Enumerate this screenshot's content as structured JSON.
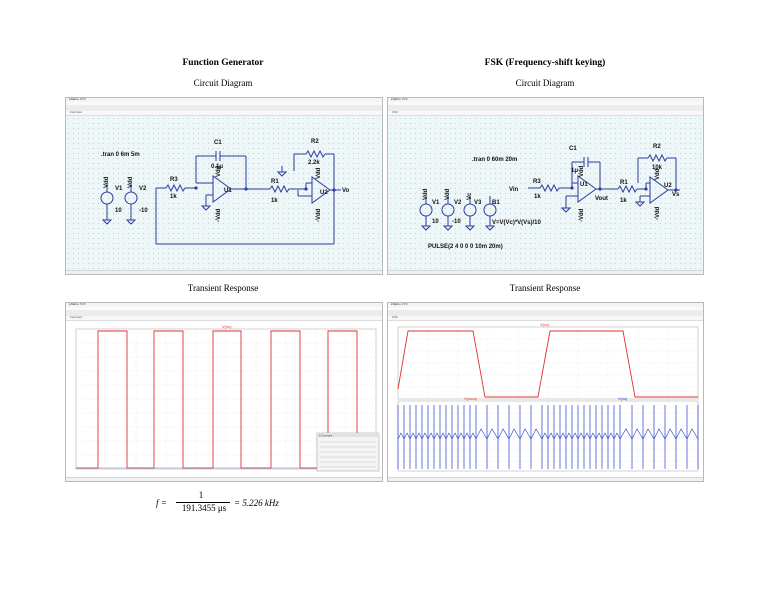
{
  "left": {
    "title": "Function Generator",
    "circuit_subtitle": "Circuit Diagram",
    "transient_subtitle": "Transient Response",
    "window_title": "LTspice XVII",
    "schematic_tab": "FuncGen",
    "waveform_tab": "FuncGen",
    "schematic": {
      "directive": ".tran 0 6m 5m",
      "V1": {
        "name": "V1",
        "value": "10",
        "node": "Vdd"
      },
      "V2": {
        "name": "V2",
        "value": "-10",
        "node": "Vdd"
      },
      "R3": {
        "name": "R3",
        "value": "1k"
      },
      "C1": {
        "name": "C1",
        "value": "0.1μ"
      },
      "U1": {
        "name": "U1",
        "top": "Vdd",
        "bottom": "-Vdd"
      },
      "R1": {
        "name": "R1",
        "value": "1k"
      },
      "R2": {
        "name": "R2",
        "value": "2.2k"
      },
      "U2": {
        "name": "U2",
        "top": "Vdd",
        "bottom": "-Vdd"
      },
      "out": "Vo"
    },
    "trace_label": "V(vo)",
    "trace_color": "#e03030",
    "cursor_title": "2 Cursors",
    "formula": {
      "lhs": "f =",
      "numerator": "1",
      "denominator": "191.3455 μs",
      "result": "= 5.226 kHz"
    }
  },
  "right": {
    "title": "FSK (Frequency-shift keying)",
    "circuit_subtitle": "Circuit Diagram",
    "transient_subtitle": "Transient Response",
    "window_title": "LTspice XVII",
    "schematic_tab": "FSK",
    "waveform_tab": "FSK",
    "schematic": {
      "directive": ".tran 0 60m 20m",
      "V1": {
        "name": "V1",
        "value": "10",
        "node": "Vdd"
      },
      "V2": {
        "name": "V2",
        "value": "-10",
        "node": "Vdd"
      },
      "V3": {
        "name": "V3",
        "node": "Vc"
      },
      "B1": {
        "name": "B1",
        "expr": "V=V(Vc)*V(Vs)/10"
      },
      "pulse": "PULSE(2 4 0 0 0 10m 20m)",
      "vin": "Vin",
      "R3": {
        "name": "R3",
        "value": "1k"
      },
      "C1": {
        "name": "C1",
        "value": "1μ"
      },
      "U1": {
        "name": "U1",
        "top": "Vdd",
        "bottom": "-Vdd"
      },
      "vout": "Vout",
      "R1": {
        "name": "R1",
        "value": "1k"
      },
      "R2": {
        "name": "R2",
        "value": "10k"
      },
      "U2": {
        "name": "U2",
        "top": "Vdd",
        "bottom": "-Vdd"
      },
      "out": "Vs"
    },
    "trace_top_label": "V(vc)",
    "trace_bottom_label_1": "V(vout)",
    "trace_bottom_label_2": "V(vs)",
    "trace_top_color": "#e03030",
    "trace_bottom_color": "#2a3fc9"
  }
}
